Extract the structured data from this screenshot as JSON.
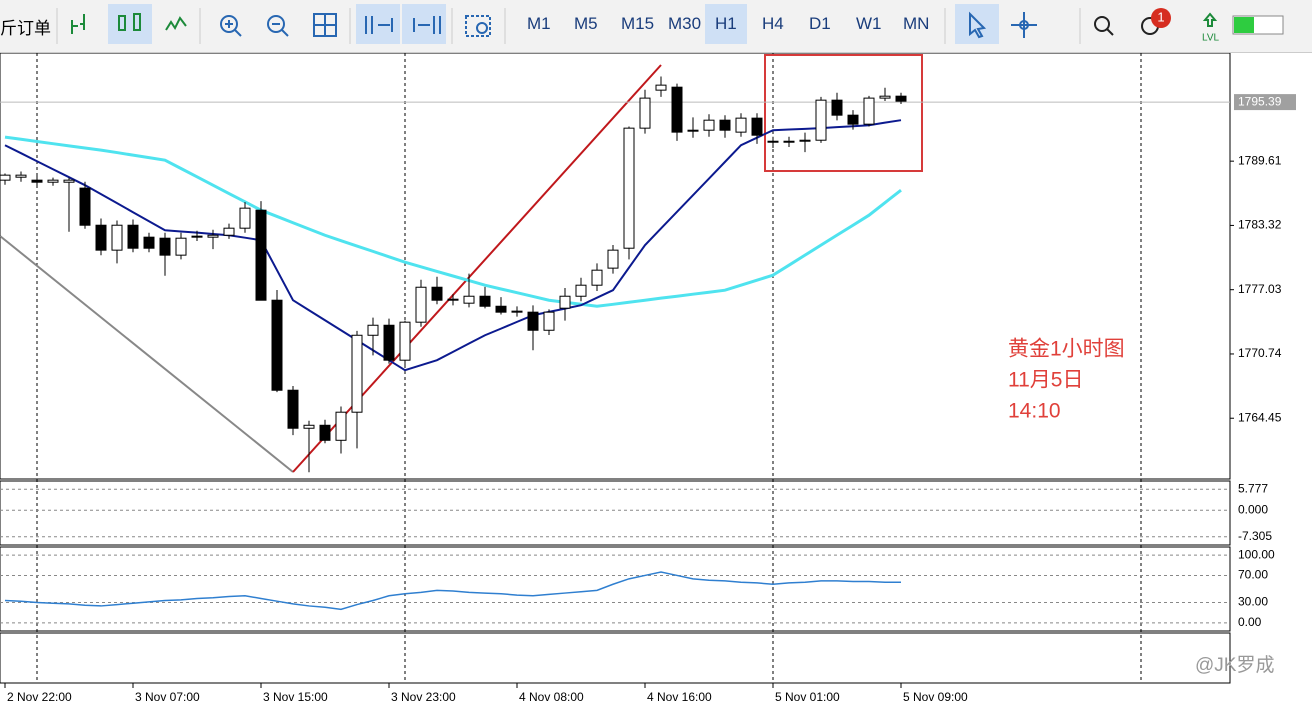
{
  "toolbar": {
    "order_label": "斤订单",
    "timeframes": [
      "M1",
      "M5",
      "M15",
      "M30",
      "H1",
      "H4",
      "D1",
      "W1",
      "MN"
    ],
    "active_timeframe": 4,
    "badge": "1",
    "lvl": "LVL"
  },
  "chart_data": {
    "type": "candlestick",
    "categories": [
      "2 Nov 22:00",
      null,
      null,
      null,
      null,
      null,
      null,
      null,
      "3 Nov 07:00",
      null,
      null,
      null,
      null,
      null,
      null,
      null,
      "3 Nov 15:00",
      null,
      null,
      null,
      null,
      null,
      null,
      null,
      "3 Nov 23:00",
      null,
      null,
      null,
      null,
      null,
      null,
      null,
      "4 Nov 08:00",
      null,
      null,
      null,
      null,
      null,
      null,
      null,
      "4 Nov 16:00",
      null,
      null,
      null,
      null,
      null,
      null,
      null,
      "5 Nov 01:00",
      null,
      null,
      null,
      null,
      null,
      null,
      null,
      "5 Nov 09:00"
    ],
    "ohlc": [
      [
        1787.75,
        1788.4,
        1787.3,
        1788.24
      ],
      [
        1788.04,
        1788.6,
        1787.6,
        1788.24
      ],
      [
        1787.75,
        1788.2,
        1787.2,
        1787.55
      ],
      [
        1787.55,
        1788.0,
        1787.2,
        1787.75
      ],
      [
        1787.55,
        1788.0,
        1782.7,
        1787.75
      ],
      [
        1786.97,
        1787.6,
        1783.0,
        1783.34
      ],
      [
        1783.34,
        1784.0,
        1780.4,
        1780.9
      ],
      [
        1780.9,
        1783.8,
        1779.6,
        1783.34
      ],
      [
        1783.34,
        1783.9,
        1780.7,
        1781.09
      ],
      [
        1782.17,
        1782.6,
        1780.7,
        1781.09
      ],
      [
        1782.07,
        1782.6,
        1778.4,
        1780.41
      ],
      [
        1780.41,
        1782.6,
        1780.0,
        1782.07
      ],
      [
        1782.27,
        1782.8,
        1781.8,
        1782.17
      ],
      [
        1782.17,
        1782.9,
        1781.0,
        1782.36
      ],
      [
        1782.36,
        1783.5,
        1782.0,
        1783.05
      ],
      [
        1783.05,
        1785.6,
        1782.6,
        1785.01
      ],
      [
        1784.81,
        1785.7,
        1776.0,
        1776.0
      ],
      [
        1776.0,
        1777.0,
        1767.0,
        1767.19
      ],
      [
        1767.19,
        1767.6,
        1762.8,
        1763.47
      ],
      [
        1763.47,
        1764.2,
        1759.16,
        1763.76
      ],
      [
        1763.76,
        1764.3,
        1762.0,
        1762.29
      ],
      [
        1762.29,
        1765.6,
        1761.0,
        1765.04
      ],
      [
        1765.04,
        1773.0,
        1761.5,
        1772.57
      ],
      [
        1772.57,
        1774.3,
        1770.6,
        1773.55
      ],
      [
        1773.55,
        1774.2,
        1769.8,
        1770.13
      ],
      [
        1770.13,
        1774.0,
        1769.6,
        1773.85
      ],
      [
        1773.85,
        1778.0,
        1773.4,
        1777.27
      ],
      [
        1777.27,
        1778.3,
        1775.6,
        1776.0
      ],
      [
        1776.0,
        1776.6,
        1775.5,
        1776.1
      ],
      [
        1775.71,
        1778.6,
        1775.3,
        1776.39
      ],
      [
        1776.39,
        1777.3,
        1775.2,
        1775.41
      ],
      [
        1775.41,
        1776.3,
        1774.6,
        1774.83
      ],
      [
        1774.83,
        1775.4,
        1774.4,
        1774.93
      ],
      [
        1774.83,
        1775.5,
        1771.1,
        1773.06
      ],
      [
        1773.06,
        1775.1,
        1772.6,
        1774.83
      ],
      [
        1775.22,
        1777.2,
        1774.0,
        1776.39
      ],
      [
        1776.39,
        1778.2,
        1775.9,
        1777.47
      ],
      [
        1777.47,
        1779.6,
        1776.9,
        1778.94
      ],
      [
        1779.14,
        1781.4,
        1778.6,
        1780.9
      ],
      [
        1781.09,
        1793.0,
        1780.0,
        1792.84
      ],
      [
        1792.84,
        1796.6,
        1792.3,
        1795.78
      ],
      [
        1796.56,
        1797.9,
        1795.9,
        1797.05
      ],
      [
        1796.85,
        1797.2,
        1791.6,
        1792.45
      ],
      [
        1792.64,
        1793.9,
        1791.9,
        1792.64
      ],
      [
        1792.64,
        1794.2,
        1792.0,
        1793.62
      ],
      [
        1793.62,
        1794.1,
        1791.9,
        1792.64
      ],
      [
        1792.45,
        1794.3,
        1792.0,
        1793.82
      ],
      [
        1793.82,
        1794.3,
        1791.3,
        1792.15
      ],
      [
        1791.47,
        1792.0,
        1790.9,
        1791.56
      ],
      [
        1791.56,
        1792.0,
        1791.0,
        1791.47
      ],
      [
        1791.56,
        1792.4,
        1790.5,
        1791.66
      ],
      [
        1791.66,
        1795.9,
        1791.4,
        1795.58
      ],
      [
        1795.58,
        1796.3,
        1793.6,
        1794.11
      ],
      [
        1794.11,
        1794.6,
        1792.7,
        1793.23
      ],
      [
        1793.23,
        1796.0,
        1793.0,
        1795.78
      ],
      [
        1795.78,
        1796.8,
        1795.5,
        1795.97
      ],
      [
        1795.97,
        1796.3,
        1795.2,
        1795.48
      ]
    ],
    "bull_color": "#ffffff",
    "bear_color": "#000000",
    "overlays": [
      {
        "color": "#4fe3ef",
        "values": [
          1791.96,
          1791.75,
          1791.53,
          1791.32,
          1791.11,
          1790.9,
          1790.69,
          1790.45,
          1790.2,
          1789.96,
          1789.71,
          1788.89,
          1788.08,
          1787.26,
          1786.44,
          1785.63,
          1784.81,
          1784.2,
          1783.58,
          1782.97,
          1782.36,
          1781.83,
          1781.3,
          1780.78,
          1780.25,
          1779.72,
          1779.27,
          1778.82,
          1778.37,
          1777.92,
          1777.47,
          1777.1,
          1776.74,
          1776.37,
          1776.0,
          1775.8,
          1775.61,
          1775.41,
          1775.6,
          1775.8,
          1776.0,
          1776.2,
          1776.39,
          1776.59,
          1776.78,
          1776.98,
          1777.47,
          1777.96,
          1778.45,
          1779.43,
          1780.41,
          1781.39,
          1782.37,
          1783.34,
          1784.32,
          1785.55,
          1786.77
        ]
      },
      {
        "color": "#0c1a8f",
        "values": [
          1791.17,
          1790.39,
          1789.6,
          1788.82,
          1788.04,
          1787.26,
          1786.38,
          1785.5,
          1784.61,
          1783.73,
          1782.85,
          1782.73,
          1782.61,
          1782.48,
          1782.36,
          1782.12,
          1781.87,
          1778.94,
          1776.0,
          1775.02,
          1774.04,
          1773.06,
          1772.08,
          1771.1,
          1770.13,
          1769.15,
          1769.64,
          1770.13,
          1770.94,
          1771.76,
          1772.57,
          1773.22,
          1773.88,
          1774.53,
          1774.86,
          1775.18,
          1775.51,
          1776.25,
          1776.98,
          1779.19,
          1781.39,
          1783.02,
          1784.65,
          1786.28,
          1787.91,
          1789.54,
          1791.17,
          1791.91,
          1792.64,
          1792.71,
          1792.77,
          1792.84,
          1792.94,
          1793.03,
          1793.13,
          1793.38,
          1793.62
        ]
      }
    ],
    "ylim": [
      1758.6,
      1800.0
    ],
    "yticks": [
      1764.45,
      1770.74,
      1777.03,
      1783.32,
      1789.61
    ],
    "last_price": 1795.39,
    "annotation": [
      "黄金1小时图",
      "11月5日",
      "14:10"
    ],
    "watermark": "@JK罗成",
    "panels": [
      {
        "ylim": [
          -9.58,
          8.05
        ],
        "yticks": [
          5.777,
          {
            "value": 0,
            "label": "0.000"
          },
          -7.305
        ]
      },
      {
        "ylim": [
          -12,
          112
        ],
        "yticks": [
          {
            "value": 100,
            "label": "100.00"
          },
          {
            "value": 70,
            "label": "70.00"
          },
          {
            "value": 30,
            "label": "30.00"
          },
          {
            "value": 0,
            "label": "0.00"
          }
        ],
        "line": {
          "color": "#2f7fd0",
          "values": [
            33,
            32,
            30,
            29,
            28,
            26,
            25,
            27,
            29,
            31,
            33,
            34,
            36,
            37,
            39,
            40,
            36,
            32,
            28,
            25,
            23,
            20,
            27,
            33,
            40,
            43,
            45,
            48,
            47,
            45,
            44,
            43,
            41,
            40,
            42,
            44,
            46,
            48,
            57,
            65,
            70,
            75,
            70,
            65,
            63,
            62,
            60,
            59,
            57,
            59,
            60,
            62,
            62,
            61,
            61,
            60,
            60
          ]
        }
      }
    ]
  }
}
